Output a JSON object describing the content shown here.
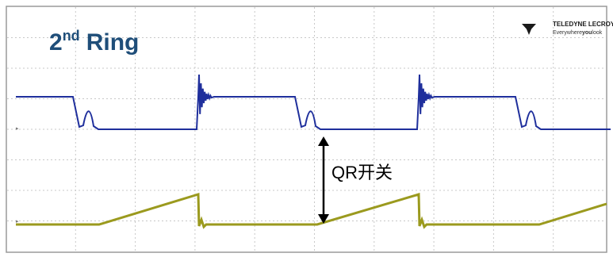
{
  "title": {
    "number": "2",
    "superscript": "nd",
    "rest": "Ring"
  },
  "logo": {
    "brand": "TELEDYNE LECROY",
    "tagline": [
      "Everywhere",
      "you",
      "look"
    ]
  },
  "annotation": "QR开关"
}
